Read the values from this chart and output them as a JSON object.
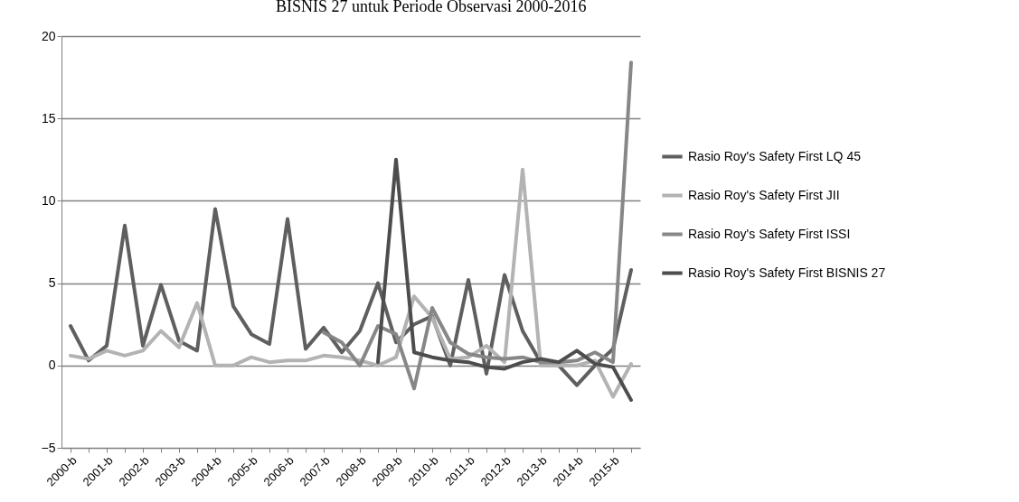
{
  "chart_data": {
    "type": "line",
    "title": "BISNIS 27 untuk Periode Observasi 2000-2016",
    "categories": [
      "2000-b",
      null,
      "2001-b",
      null,
      "2002-b",
      null,
      "2003-b",
      null,
      "2004-b",
      null,
      "2005-b",
      null,
      "2006-b",
      null,
      "2007-b",
      null,
      "2008-b",
      null,
      "2009-b",
      null,
      "2010-b",
      null,
      "2011-b",
      null,
      "2012-b",
      null,
      "2013-b",
      null,
      "2014-b",
      null,
      "2015-b",
      null
    ],
    "series": [
      {
        "name": "Rasio Roy's Safety First LQ 45",
        "color": "#5f5f5f",
        "values": [
          2.4,
          0.3,
          1.2,
          8.5,
          1.2,
          4.9,
          1.5,
          0.9,
          9.5,
          3.6,
          1.9,
          1.3,
          8.9,
          1.0,
          2.3,
          0.8,
          2.1,
          5.0,
          1.4,
          2.5,
          3.0,
          0.0,
          5.2,
          -0.5,
          5.5,
          2.1,
          0.2,
          0.0,
          -1.2,
          0.0,
          1.0,
          5.8
        ]
      },
      {
        "name": "Rasio Roy's Safety First JII",
        "color": "#b3b3b3",
        "values": [
          0.6,
          0.4,
          0.9,
          0.6,
          0.9,
          2.1,
          1.1,
          3.8,
          0.0,
          0.0,
          0.5,
          0.2,
          0.3,
          0.3,
          0.6,
          0.5,
          0.3,
          0.0,
          0.5,
          4.2,
          2.9,
          0.4,
          0.5,
          1.2,
          0.2,
          11.9,
          0.0,
          0.0,
          0.0,
          0.3,
          -1.9,
          0.1
        ]
      },
      {
        "name": "Rasio Roy's Safety First ISSI",
        "color": "#878787",
        "values": [
          null,
          null,
          null,
          null,
          null,
          null,
          null,
          null,
          null,
          null,
          null,
          null,
          null,
          null,
          2.0,
          1.4,
          0.0,
          2.4,
          1.9,
          -1.4,
          3.5,
          1.4,
          0.7,
          0.5,
          0.4,
          0.5,
          0.2,
          0.2,
          0.3,
          0.8,
          0.2,
          18.4
        ]
      },
      {
        "name": "Rasio Roy's Safety First BISNIS 27",
        "color": "#4d4d4d",
        "values": [
          null,
          null,
          null,
          null,
          null,
          null,
          null,
          null,
          null,
          null,
          null,
          null,
          null,
          null,
          null,
          null,
          null,
          0.2,
          12.5,
          0.8,
          0.5,
          0.3,
          0.2,
          -0.1,
          -0.2,
          0.2,
          0.4,
          0.2,
          0.9,
          0.1,
          -0.1,
          -2.1
        ]
      }
    ],
    "ylim": [
      -5,
      20
    ],
    "yticks": [
      -5,
      0,
      5,
      10,
      15,
      20
    ],
    "grid": "y",
    "legend": "right"
  }
}
